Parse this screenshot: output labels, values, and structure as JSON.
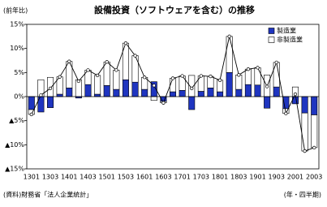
{
  "chart_data": {
    "type": "bar",
    "stacked": true,
    "title": "設備投資（ソフトウェアを含む）の推移",
    "y_label": "(前年比)",
    "source": "(資料)財務省「法人企業統計」",
    "x_label": "(年・四半期)",
    "categories": [
      "1301",
      null,
      "1303",
      null,
      "1401",
      null,
      "1403",
      null,
      "1501",
      null,
      "1503",
      null,
      "1601",
      null,
      "1603",
      null,
      "1701",
      null,
      "1703",
      null,
      "1801",
      null,
      "1803",
      null,
      "1901",
      null,
      "1903",
      null,
      "2001",
      null,
      "2003"
    ],
    "series": [
      {
        "name": "製造業",
        "type": "bar",
        "color": "#1f35c0",
        "values": [
          -2.7,
          -3.2,
          -2.3,
          0.5,
          1.8,
          -0.3,
          2.5,
          0.5,
          2.3,
          1.5,
          3.5,
          3.0,
          1.5,
          3.1,
          -1.0,
          1.0,
          1.3,
          -2.7,
          1.1,
          1.8,
          1.0,
          5.0,
          1.5,
          2.5,
          2.4,
          -2.4,
          2.0,
          -2.5,
          -1.5,
          -3.4,
          -3.8
        ]
      },
      {
        "name": "非製造業",
        "type": "bar",
        "color": "#ffffff",
        "values": [
          -1.0,
          3.5,
          4.0,
          3.6,
          5.5,
          3.5,
          3.0,
          3.9,
          4.9,
          4.0,
          7.6,
          5.5,
          2.5,
          -0.8,
          -0.3,
          2.8,
          3.0,
          4.4,
          3.2,
          2.4,
          2.4,
          7.5,
          3.0,
          3.2,
          3.6,
          4.5,
          5.1,
          -1.0,
          2.0,
          -7.9,
          -6.8
        ]
      },
      {
        "type": "line",
        "color": "#000000",
        "values": [
          -3.7,
          0.3,
          1.7,
          4.1,
          7.3,
          3.2,
          5.5,
          4.4,
          7.2,
          5.5,
          11.1,
          8.5,
          4.0,
          2.3,
          -1.3,
          3.8,
          4.3,
          1.7,
          4.3,
          4.2,
          3.4,
          12.5,
          4.5,
          5.7,
          6.0,
          2.1,
          7.1,
          -3.5,
          0.5,
          -11.3,
          -10.6
        ]
      }
    ],
    "ylim": [
      -15,
      15
    ],
    "yticks": [
      {
        "value": -15,
        "label": "▲15%"
      },
      {
        "value": -10,
        "label": "▲10%"
      },
      {
        "value": -5,
        "label": "▲5%"
      },
      {
        "value": 0,
        "label": "0%"
      },
      {
        "value": 5,
        "label": "5%"
      },
      {
        "value": 10,
        "label": "10%"
      },
      {
        "value": 15,
        "label": "15%"
      }
    ],
    "legend": "upper right"
  }
}
